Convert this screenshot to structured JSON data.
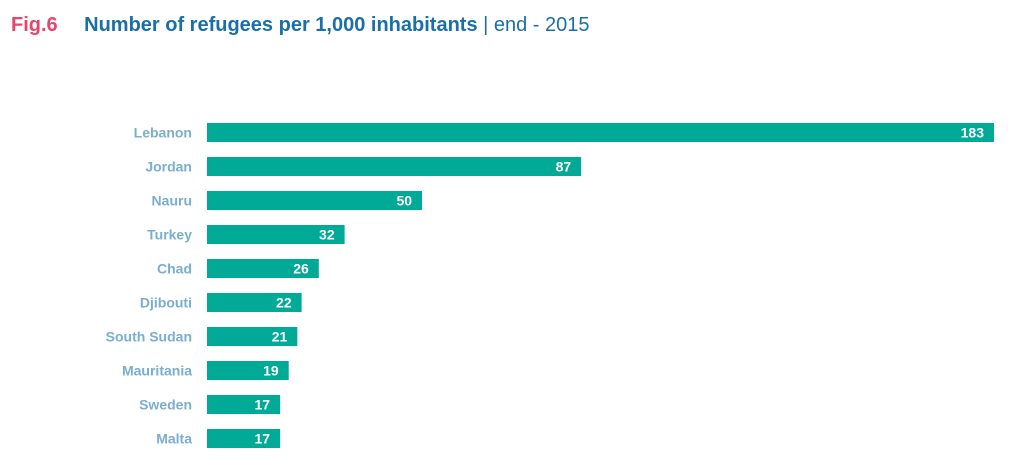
{
  "header": {
    "fig_label": "Fig.6",
    "title": "Number of refugees per 1,000 inhabitants",
    "subtitle": " | end - 2015"
  },
  "colors": {
    "bar": "#00aa96",
    "fig_label": "#e8456b",
    "title": "#1a6fa8",
    "category_label": "#7aaed0",
    "value_label": "#ffffff"
  },
  "chart_data": {
    "type": "bar",
    "orientation": "horizontal",
    "title": "Number of refugees per 1,000 inhabitants",
    "subtitle": "end - 2015",
    "categories": [
      "Lebanon",
      "Jordan",
      "Nauru",
      "Turkey",
      "Chad",
      "Djibouti",
      "South Sudan",
      "Mauritania",
      "Sweden",
      "Malta"
    ],
    "values": [
      183,
      87,
      50,
      32,
      26,
      22,
      21,
      19,
      17,
      17
    ],
    "xlim": [
      0,
      183
    ],
    "grid": false,
    "legend": false
  }
}
